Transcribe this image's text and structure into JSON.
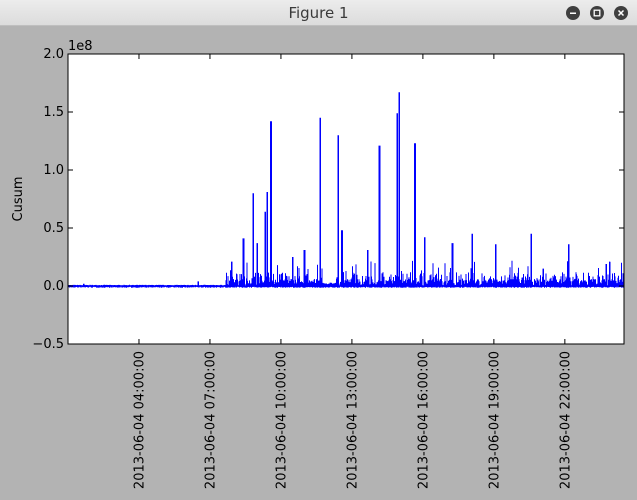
{
  "window": {
    "title": "Figure 1",
    "buttons": [
      "minimize",
      "maximize",
      "close"
    ]
  },
  "colors": {
    "figure_bg": "#b3b3b3",
    "axes_bg": "#ffffff",
    "line": "#0000ff",
    "titlebar": "#e6e6e6"
  },
  "chart_data": {
    "type": "line",
    "ylabel": "Cusum",
    "offset_text": "1e8",
    "ylim": [
      -0.5,
      2.0
    ],
    "yticks": [
      -0.5,
      0.0,
      0.5,
      1.0,
      1.5,
      2.0
    ],
    "ytick_labels": [
      "−0.5",
      "0.0",
      "0.5",
      "1.0",
      "1.5",
      "2.0"
    ],
    "xlim": [
      "2013-06-04 01:00:00",
      "2013-06-05 00:30:00"
    ],
    "xticks": [
      "2013-06-04 04:00:00",
      "2013-06-04 07:00:00",
      "2013-06-04 10:00:00",
      "2013-06-04 13:00:00",
      "2013-06-04 16:00:00",
      "2013-06-04 19:00:00",
      "2013-06-04 22:00:00"
    ],
    "xtick_labels": [
      "2013-06-04 04:00:00",
      "2013-06-04 07:00:00",
      "2013-06-04 10:00:00",
      "2013-06-04 13:00:00",
      "2013-06-04 16:00:00",
      "2013-06-04 19:00:00",
      "2013-06-04 22:00:00"
    ],
    "peaks": [
      [
        "2013-06-04 01:40:00",
        0.02
      ],
      [
        "2013-06-04 06:30:00",
        0.04
      ],
      [
        "2013-06-04 07:55:00",
        0.21
      ],
      [
        "2013-06-04 08:25:00",
        0.41
      ],
      [
        "2013-06-04 08:50:00",
        0.8
      ],
      [
        "2013-06-04 09:00:00",
        0.37
      ],
      [
        "2013-06-04 09:20:00",
        0.64
      ],
      [
        "2013-06-04 09:25:00",
        0.81
      ],
      [
        "2013-06-04 09:35:00",
        1.42
      ],
      [
        "2013-06-04 10:30:00",
        0.25
      ],
      [
        "2013-06-04 11:00:00",
        0.31
      ],
      [
        "2013-06-04 11:40:00",
        1.45
      ],
      [
        "2013-06-04 12:25:00",
        1.3
      ],
      [
        "2013-06-04 12:35:00",
        0.48
      ],
      [
        "2013-06-04 13:40:00",
        0.31
      ],
      [
        "2013-06-04 14:10:00",
        1.21
      ],
      [
        "2013-06-04 14:55:00",
        1.49
      ],
      [
        "2013-06-04 15:00:00",
        1.67
      ],
      [
        "2013-06-04 15:40:00",
        1.23
      ],
      [
        "2013-06-04 16:05:00",
        0.42
      ],
      [
        "2013-06-04 17:15:00",
        0.37
      ],
      [
        "2013-06-04 18:05:00",
        0.45
      ],
      [
        "2013-06-04 19:05:00",
        0.36
      ],
      [
        "2013-06-04 20:35:00",
        0.45
      ],
      [
        "2013-06-04 21:05:00",
        0.15
      ],
      [
        "2013-06-04 22:10:00",
        0.36
      ],
      [
        "2013-06-04 23:45:00",
        0.19
      ]
    ],
    "grid": false,
    "legend": "none"
  }
}
